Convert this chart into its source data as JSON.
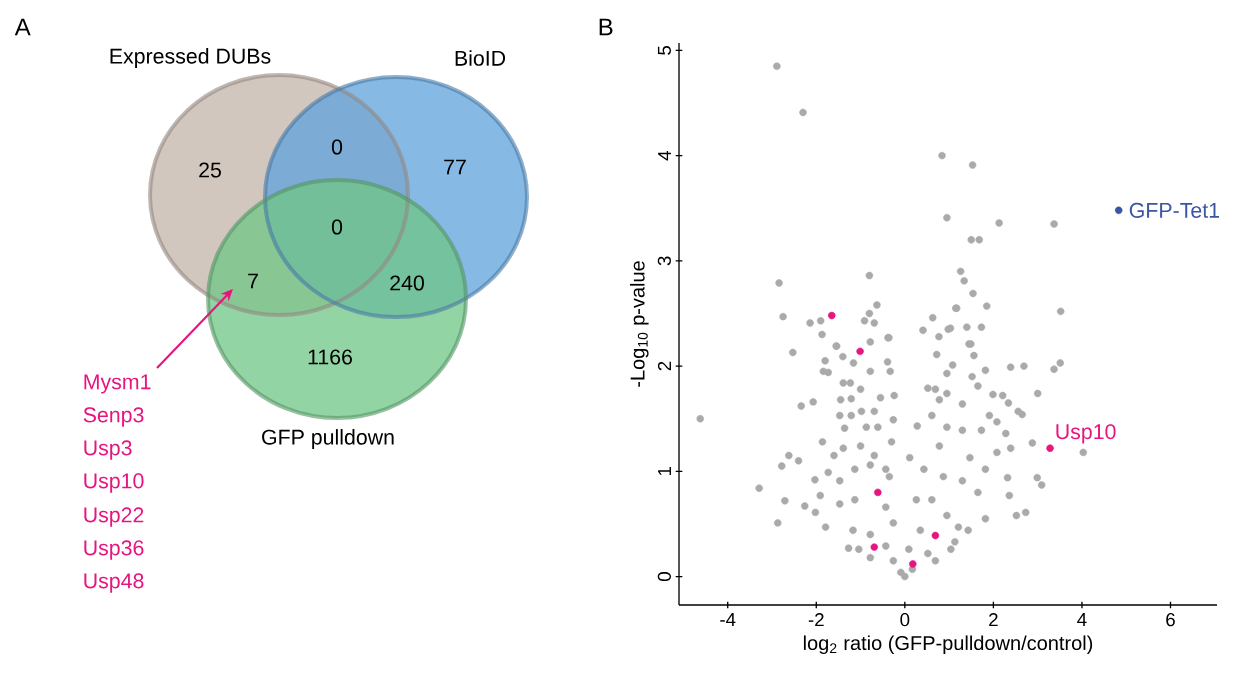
{
  "chart_data": [
    {
      "type": "other",
      "title": "A",
      "categories": [
        "Expressed DUBs",
        "BioID",
        "GFP pulldown"
      ],
      "colors": [
        "#c2b4aa",
        "#5fa2dc",
        "#6fc585"
      ],
      "annotations": [
        "25",
        "0",
        "77",
        "0",
        "7",
        "240",
        "1166",
        "Mysm1",
        "Senp3",
        "Usp3",
        "Usp10",
        "Usp22",
        "Usp36",
        "Usp48"
      ]
    },
    {
      "type": "scatter",
      "title": "B",
      "xlabel": "log$_{2}$ ratio (GFP-pulldown/control)",
      "ylabel": "-Log$_{10}$ p-value",
      "xlim": [
        -5.1,
        7.05
      ],
      "ylim": [
        -0.27,
        5.07
      ],
      "xticks": [
        -4,
        -2,
        0,
        2,
        4,
        6
      ],
      "yticks": [
        0,
        1,
        2,
        3,
        4,
        5
      ],
      "marker": "circle",
      "grid": false,
      "legend": false,
      "annotations": [
        {
          "text": "Usp10",
          "x": 3.28,
          "y": 1.22
        }
      ],
      "series": [
        {
          "color": "#aaaaaa",
          "x": [
            -2.89,
            -2.3,
            0.84,
            1.53,
            0.95,
            2.13,
            3.37,
            1.5,
            1.68,
            -2.84,
            -0.8,
            1.26,
            1.34,
            1.54,
            -0.63,
            1.17,
            1.85,
            3.52,
            -2.75,
            -2.14,
            -1.9,
            -0.8,
            -0.91,
            -0.69,
            -1.87,
            0.63,
            0.41,
            0.77,
            1.03,
            1.4,
            1.73,
            -0.38,
            -0.78,
            1.45,
            -1.54,
            -4.62,
            -3.29,
            -2.87,
            -2.71,
            -2.78,
            -2.62,
            -2.4,
            -2.53,
            -2.34,
            -2.26,
            -2.07,
            -2.03,
            -2.02,
            -1.79,
            -1.27,
            -1.84,
            -1.73,
            -1.8,
            -1.55,
            -1.4,
            -1.16,
            -0.36,
            -0.33,
            -0.24,
            -0.39,
            -0.55,
            -0.78,
            -1.0,
            -1.39,
            -1.23,
            -1.45,
            -1.21,
            -1.47,
            -1.21,
            -0.98,
            -0.69,
            -0.26,
            -1.36,
            -0.87,
            -0.61,
            -1.86,
            -1.6,
            -1.39,
            -1.0,
            -0.69,
            -0.3,
            -1.73,
            -1.47,
            -1.13,
            -0.78,
            -0.43,
            -0.35,
            -1.91,
            -1.47,
            -1.13,
            -0.43,
            -0.26,
            -1.17,
            -0.78,
            -0.43,
            -0.26,
            -0.09,
            0.0,
            -0.78,
            -1.04,
            0.11,
            0.28,
            0.52,
            0.69,
            0.95,
            0.72,
            1.08,
            0.95,
            0.98,
            1.15,
            1.49,
            1.56,
            1.52,
            1.82,
            1.65,
            1.99,
            2.21,
            2.34,
            2.39,
            2.69,
            2.56,
            2.65,
            3.0,
            3.37,
            3.51,
            4.03,
            2.88,
            2.99,
            3.09,
            2.73,
            2.52,
            2.36,
            2.32,
            2.39,
            2.28,
            2.08,
            1.91,
            1.73,
            2.08,
            1.82,
            1.65,
            1.82,
            1.43,
            1.3,
            1.47,
            1.3,
            0.95,
            0.78,
            0.43,
            0.87,
            0.61,
            0.26,
            0.35,
            0.95,
            1.13,
            0.52,
            0.17,
            0.09,
            0.69,
            1.04,
            1.21,
            0.61,
            1.3,
            0.78
          ],
          "values": [
            4.85,
            4.41,
            4.0,
            3.91,
            3.41,
            3.36,
            3.35,
            3.2,
            3.2,
            2.79,
            2.86,
            2.9,
            2.81,
            2.69,
            2.58,
            2.55,
            2.57,
            2.52,
            2.47,
            2.41,
            2.43,
            2.5,
            2.43,
            2.41,
            2.3,
            2.46,
            2.34,
            2.28,
            2.36,
            2.37,
            2.37,
            2.27,
            2.23,
            2.21,
            2.19,
            1.5,
            0.84,
            0.51,
            0.72,
            1.05,
            1.15,
            1.1,
            2.13,
            1.62,
            0.67,
            1.66,
            0.92,
            0.61,
            0.47,
            0.27,
            1.95,
            1.94,
            2.05,
            2.19,
            2.09,
            2.03,
            2.27,
            1.95,
            1.72,
            2.04,
            1.7,
            1.95,
            1.78,
            1.84,
            1.84,
            1.68,
            1.69,
            1.53,
            1.53,
            1.57,
            1.57,
            1.49,
            1.41,
            1.42,
            1.42,
            1.28,
            1.15,
            1.22,
            1.24,
            1.15,
            1.28,
            0.99,
            0.91,
            1.02,
            1.06,
            1.02,
            0.95,
            0.77,
            0.69,
            0.73,
            0.66,
            0.51,
            0.44,
            0.4,
            0.29,
            0.15,
            0.04,
            0.0,
            0.18,
            0.26,
            1.13,
            1.43,
            1.79,
            1.78,
            1.74,
            2.11,
            2.01,
            1.93,
            2.35,
            2.55,
            2.21,
            2.1,
            1.9,
            1.96,
            1.81,
            1.73,
            1.72,
            1.65,
            1.99,
            2.0,
            1.57,
            1.54,
            1.74,
            1.97,
            2.03,
            1.18,
            1.27,
            0.94,
            0.87,
            0.61,
            0.58,
            0.77,
            0.94,
            1.22,
            1.36,
            1.47,
            1.53,
            1.39,
            1.18,
            1.02,
            0.8,
            0.55,
            0.44,
            0.91,
            1.13,
            1.39,
            1.42,
            1.24,
            1.02,
            0.95,
            0.73,
            0.73,
            0.44,
            0.58,
            0.33,
            0.22,
            0.07,
            0.26,
            0.15,
            0.26,
            0.47,
            1.53,
            1.64,
            1.68
          ]
        },
        {
          "color": "#e6157f",
          "x": [
            -1.65,
            -1.01,
            -0.61,
            -0.69,
            0.18,
            0.69,
            3.28
          ],
          "values": [
            2.48,
            2.14,
            0.8,
            0.28,
            0.12,
            0.39,
            1.22
          ]
        },
        {
          "name": "GFP-Tet1",
          "color": "#3a55a4",
          "x": [
            4.83
          ],
          "values": [
            3.48
          ]
        }
      ]
    }
  ]
}
